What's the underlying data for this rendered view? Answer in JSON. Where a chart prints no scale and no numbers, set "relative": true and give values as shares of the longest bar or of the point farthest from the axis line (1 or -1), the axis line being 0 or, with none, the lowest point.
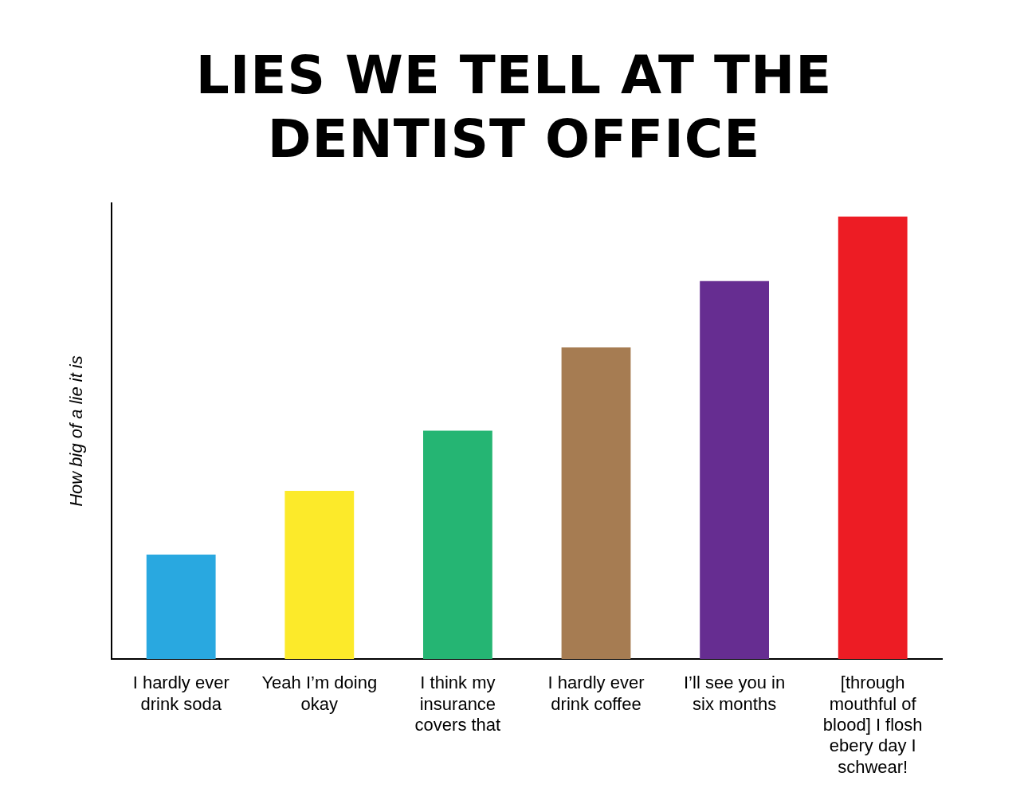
{
  "chart_data": {
    "type": "bar",
    "title": "LIES WE TELL AT THE DENTIST OFFICE",
    "ylabel": "How big of a lie it is",
    "relative": true,
    "categories": [
      "I hardly ever drink soda",
      "Yeah I’m doing okay",
      "I think my insurance covers that",
      "I hardly ever drink coffee",
      "I’ll see you in six months",
      "[through mouthful of blood] I flosh ebery day I schwear!"
    ],
    "values": [
      0.236,
      0.38,
      0.516,
      0.704,
      0.854,
      1
    ],
    "colors": [
      "#29a8e0",
      "#fcea2a",
      "#25b573",
      "#a67c52",
      "#662d91",
      "#ed1c24"
    ],
    "grid": false,
    "legend": false
  }
}
